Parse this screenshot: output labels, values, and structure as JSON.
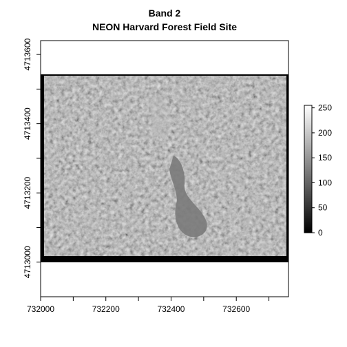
{
  "chart_data": {
    "type": "heatmap",
    "title": "Band 2",
    "subtitle": "NEON Harvard Forest Field Site",
    "xlim": [
      732000,
      732760
    ],
    "ylim": [
      4712900,
      4713640
    ],
    "x_ticks": [
      732000,
      732100,
      732200,
      732300,
      732400,
      732500,
      732600,
      732700
    ],
    "x_tick_labels": [
      "732000",
      "732200",
      "732400",
      "732600"
    ],
    "y_ticks": [
      4713000,
      4713100,
      4713200,
      4713300,
      4713400,
      4713500,
      4713600
    ],
    "y_tick_labels": [
      "4713000",
      "4713200",
      "4713400",
      "4713600"
    ],
    "raster_extent": {
      "x": [
        732000,
        732760
      ],
      "y": [
        4712945,
        4713540
      ]
    },
    "colorbar": {
      "range": [
        0,
        255
      ],
      "ticks": [
        0,
        50,
        100,
        150,
        200,
        250
      ],
      "tick_labels": [
        "0",
        "50",
        "100",
        "150",
        "200",
        "250"
      ],
      "palette": "grayscale"
    },
    "grid": false,
    "legend": "colorbar-right"
  }
}
